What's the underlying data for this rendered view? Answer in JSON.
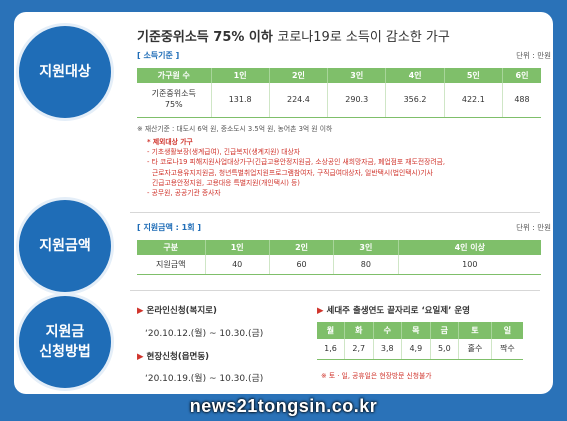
{
  "sections": {
    "target": "지원대상",
    "amount": "지원금액",
    "apply_line1": "지원금",
    "apply_line2": "신청방법"
  },
  "title": {
    "bold": "기준중위소득 75% 이하",
    "rest": "코로나19로 소득이 감소한 가구"
  },
  "income": {
    "sub_title": "[ 소득기준 ]",
    "unit": "단위 : 만원",
    "header_label": "가구원 수",
    "columns": [
      "1인",
      "2인",
      "3인",
      "4인",
      "5인",
      "6인"
    ],
    "row_label_1": "기준중위소득",
    "row_label_2": "75%",
    "values": [
      "131.8",
      "224.4",
      "290.3",
      "356.2",
      "422.1",
      "488"
    ]
  },
  "notes": {
    "wealth": "※ 재산기준 : 대도시 6억 원, 중소도시 3.5억 원, 농어촌 3억 원 이하",
    "excluded_title": "* 제외대상 가구",
    "line1": "- 기초생활보장(생계급여), 긴급복지(생계지원) 대상자",
    "line2": "- 타 코로나19 피해지원사업대상가구(긴급고용안정지원금, 소상공인 새희망자금, 폐업점포 재도전장려금,",
    "line3": "근로자고용유지지원금, 청년특별취업지원프로그램참여자, 구직급여대상자, 일반택시(법인택시)기사",
    "line4": "긴급고용안정지원, 고용대응 특별지원(개인택시) 등)",
    "line5": "- 공무원, 공공기관 종사자"
  },
  "amount": {
    "sub_title": "[ 지원금액 : 1회 ]",
    "unit": "단위 : 만원",
    "header_label": "구분",
    "columns": [
      "1인",
      "2인",
      "3인",
      "4인 이상"
    ],
    "row_label": "지원금액",
    "values": [
      "40",
      "60",
      "80",
      "100"
    ]
  },
  "apply": {
    "online_title": "온라인신청(복지로)",
    "online_dates": "‘20.10.12.(월) ~ 10.30.(금)",
    "onsite_title": "현장신청(읍면동)",
    "onsite_dates": "‘20.10.19.(월) ~ 10.30.(금)",
    "weekday_title": "세대주 출생연도 끝자리로 ‘요일제’ 운영",
    "days": [
      "월",
      "화",
      "수",
      "목",
      "금",
      "토",
      "일"
    ],
    "digits": [
      "1,6",
      "2,7",
      "3,8",
      "4,9",
      "5,0",
      "홀수",
      "짝수"
    ],
    "weekday_note": "※ 토 · 일, 공휴일은 현장방문 신청불가"
  },
  "watermark": "news21tongsin.co.kr",
  "colors": {
    "background": "#2a72b8",
    "circle": "#1f6db7",
    "table_header": "#7fbf6a",
    "accent_red": "#d0342c"
  }
}
